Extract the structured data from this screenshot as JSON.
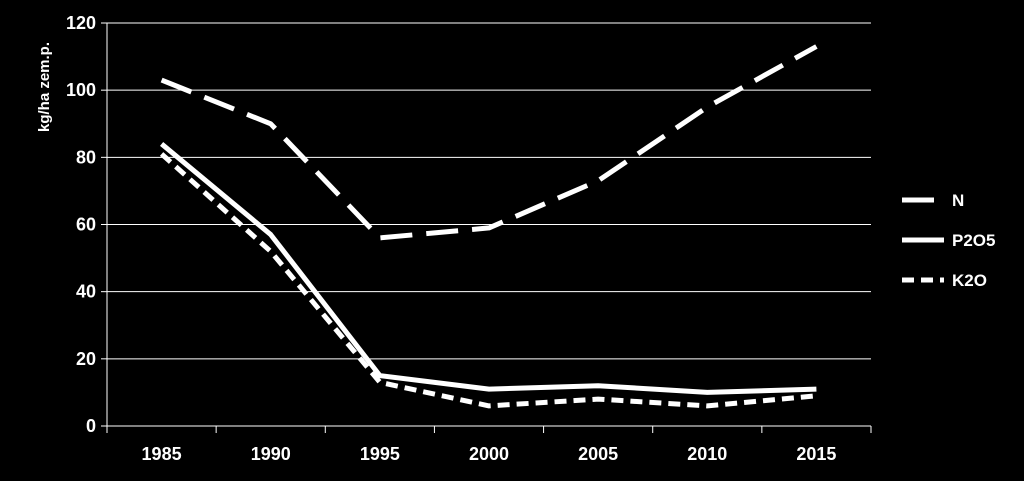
{
  "chart_data": {
    "type": "line",
    "title": "",
    "xlabel": "",
    "ylabel": "kg/ha zem.p.",
    "ylim": [
      0,
      120
    ],
    "yticks": [
      0,
      20,
      40,
      60,
      80,
      100,
      120
    ],
    "categories": [
      "1985",
      "1990",
      "1995",
      "2000",
      "2005",
      "2010",
      "2015"
    ],
    "grid": true,
    "legend_position": "right",
    "series": [
      {
        "name": "N",
        "style": "long-dash",
        "color": "#ffffff",
        "values": [
          103,
          90,
          56,
          59,
          73,
          95,
          113
        ]
      },
      {
        "name": "P2O5",
        "style": "solid",
        "color": "#ffffff",
        "values": [
          84,
          57,
          15,
          11,
          12,
          10,
          11
        ]
      },
      {
        "name": "K2O",
        "style": "short-dash",
        "color": "#ffffff",
        "values": [
          81,
          52,
          13,
          6,
          8,
          6,
          9
        ]
      }
    ]
  }
}
